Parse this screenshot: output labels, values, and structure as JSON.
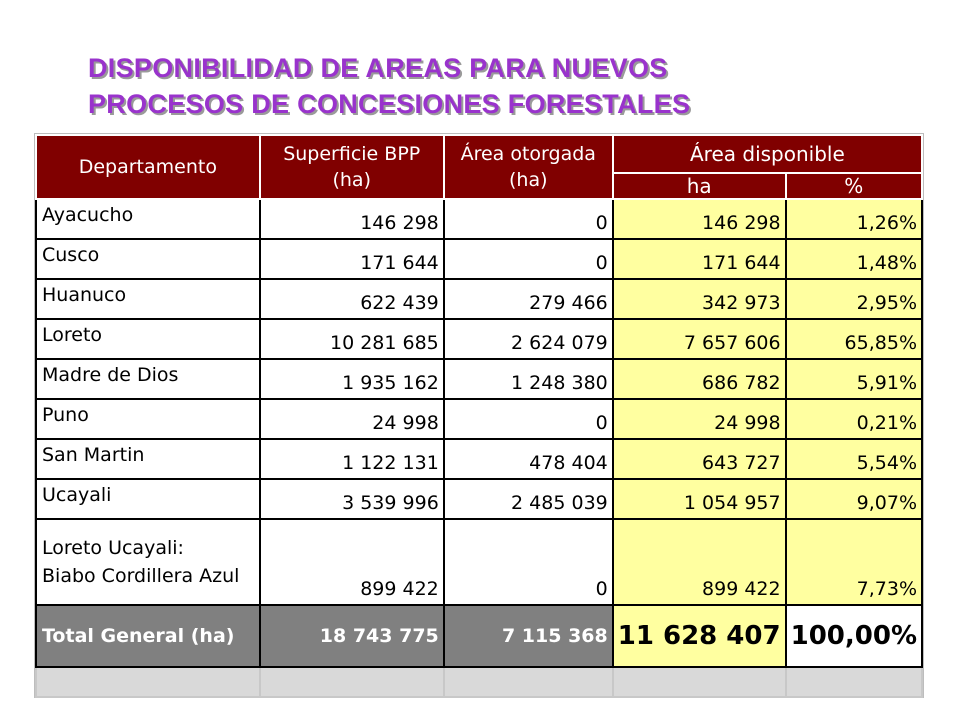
{
  "title": {
    "line1": "DISPONIBILIDAD DE AREAS PARA NUEVOS",
    "line2": "PROCESOS DE CONCESIONES FORESTALES"
  },
  "table": {
    "headers": {
      "departamento": "Departamento",
      "superficie": "Superficie BPP",
      "superficie_unit": "(ha)",
      "otorgada": "Área otorgada",
      "otorgada_unit": "(ha)",
      "disponible": "Área disponible",
      "disp_ha": "ha",
      "disp_pct": "%"
    },
    "rows": [
      {
        "name": "Ayacucho",
        "superficie": "146 298",
        "otorgada": "0",
        "disp_ha": "146 298",
        "disp_pct": "1,26%"
      },
      {
        "name": "Cusco",
        "superficie": "171 644",
        "otorgada": "0",
        "disp_ha": "171 644",
        "disp_pct": "1,48%"
      },
      {
        "name": "Huanuco",
        "superficie": "622 439",
        "otorgada": "279 466",
        "disp_ha": "342 973",
        "disp_pct": "2,95%"
      },
      {
        "name": "Loreto",
        "superficie": "10 281 685",
        "otorgada": "2 624 079",
        "disp_ha": "7 657 606",
        "disp_pct": "65,85%"
      },
      {
        "name": "Madre de Dios",
        "superficie": "1 935 162",
        "otorgada": "1 248 380",
        "disp_ha": "686 782",
        "disp_pct": "5,91%"
      },
      {
        "name": "Puno",
        "superficie": "24 998",
        "otorgada": "0",
        "disp_ha": "24 998",
        "disp_pct": "0,21%"
      },
      {
        "name": "San Martin",
        "superficie": "1 122 131",
        "otorgada": "478 404",
        "disp_ha": "643 727",
        "disp_pct": "5,54%"
      },
      {
        "name": "Ucayali",
        "superficie": "3 539 996",
        "otorgada": "2 485 039",
        "disp_ha": "1 054 957",
        "disp_pct": "9,07%"
      }
    ],
    "multi_row": {
      "name_line1": "Loreto Ucayali:",
      "name_line2": "Biabo Cordillera Azul",
      "superficie": "899 422",
      "otorgada": "0",
      "disp_ha": "899 422",
      "disp_pct": "7,73%"
    },
    "total": {
      "name": "Total General (ha)",
      "superficie": "18 743 775",
      "otorgada": "7 115 368",
      "disp_ha": "11 628 407",
      "disp_pct": "100,00%"
    }
  },
  "colors": {
    "title": "#9933cc",
    "header_bg": "#800000",
    "highlight_bg": "#ffffa0",
    "total_bg": "#808080"
  }
}
